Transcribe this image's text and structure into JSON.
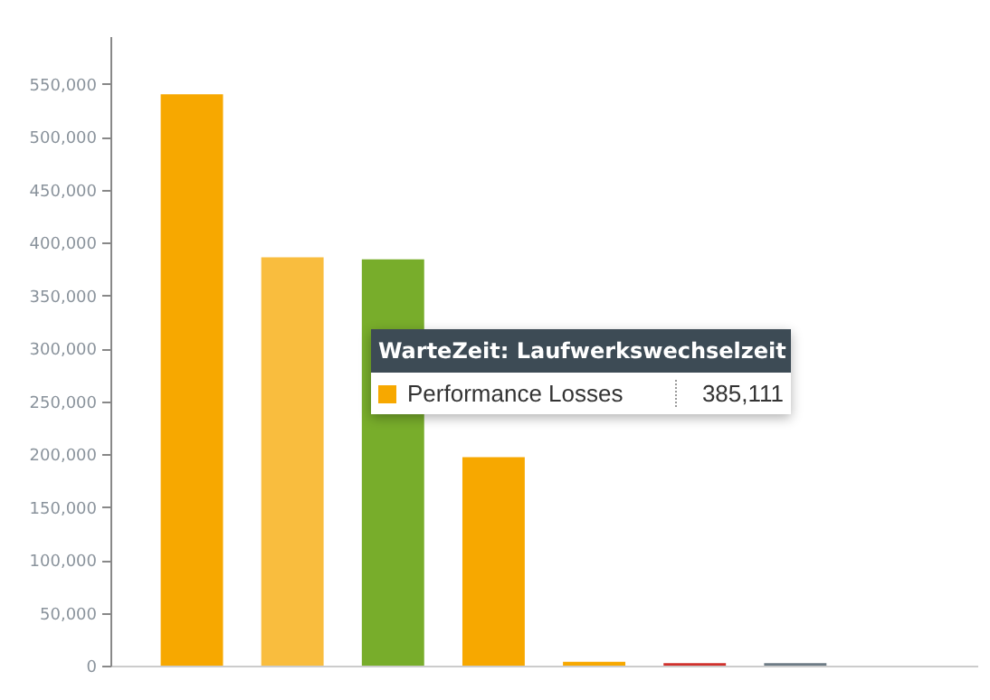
{
  "chart_data": {
    "type": "bar",
    "categories": [
      null,
      null,
      null,
      null,
      null,
      null,
      null,
      null
    ],
    "values": [
      540000,
      386000,
      384000,
      197000,
      3600,
      2400,
      2400,
      null
    ],
    "colors": [
      "#f7a800",
      "#f9bd3e",
      "#78ad2b",
      "#f7a800",
      "#f7a800",
      "#d0312d",
      "#6d7b85",
      "#f7a800"
    ],
    "ylim": [
      0,
      595000
    ],
    "yticks": [
      0,
      {
        "value": 50000,
        "label": "50,000"
      },
      {
        "value": 100000,
        "label": "100,000"
      },
      {
        "value": 150000,
        "label": "150,000"
      },
      {
        "value": 200000,
        "label": "200,000"
      },
      {
        "value": 250000,
        "label": "250,000"
      },
      {
        "value": 300000,
        "label": "300,000"
      },
      {
        "value": 350000,
        "label": "350,000"
      },
      {
        "value": 400000,
        "label": "400,000"
      },
      {
        "value": 450000,
        "label": "450,000"
      },
      {
        "value": 500000,
        "label": "500,000"
      },
      {
        "value": 550000,
        "label": "550,000"
      }
    ],
    "tick_labels": "y",
    "annotations": [
      "WarteZeit: Laufwerkswechselzeit",
      "Performance Losses",
      "385,111"
    ]
  }
}
